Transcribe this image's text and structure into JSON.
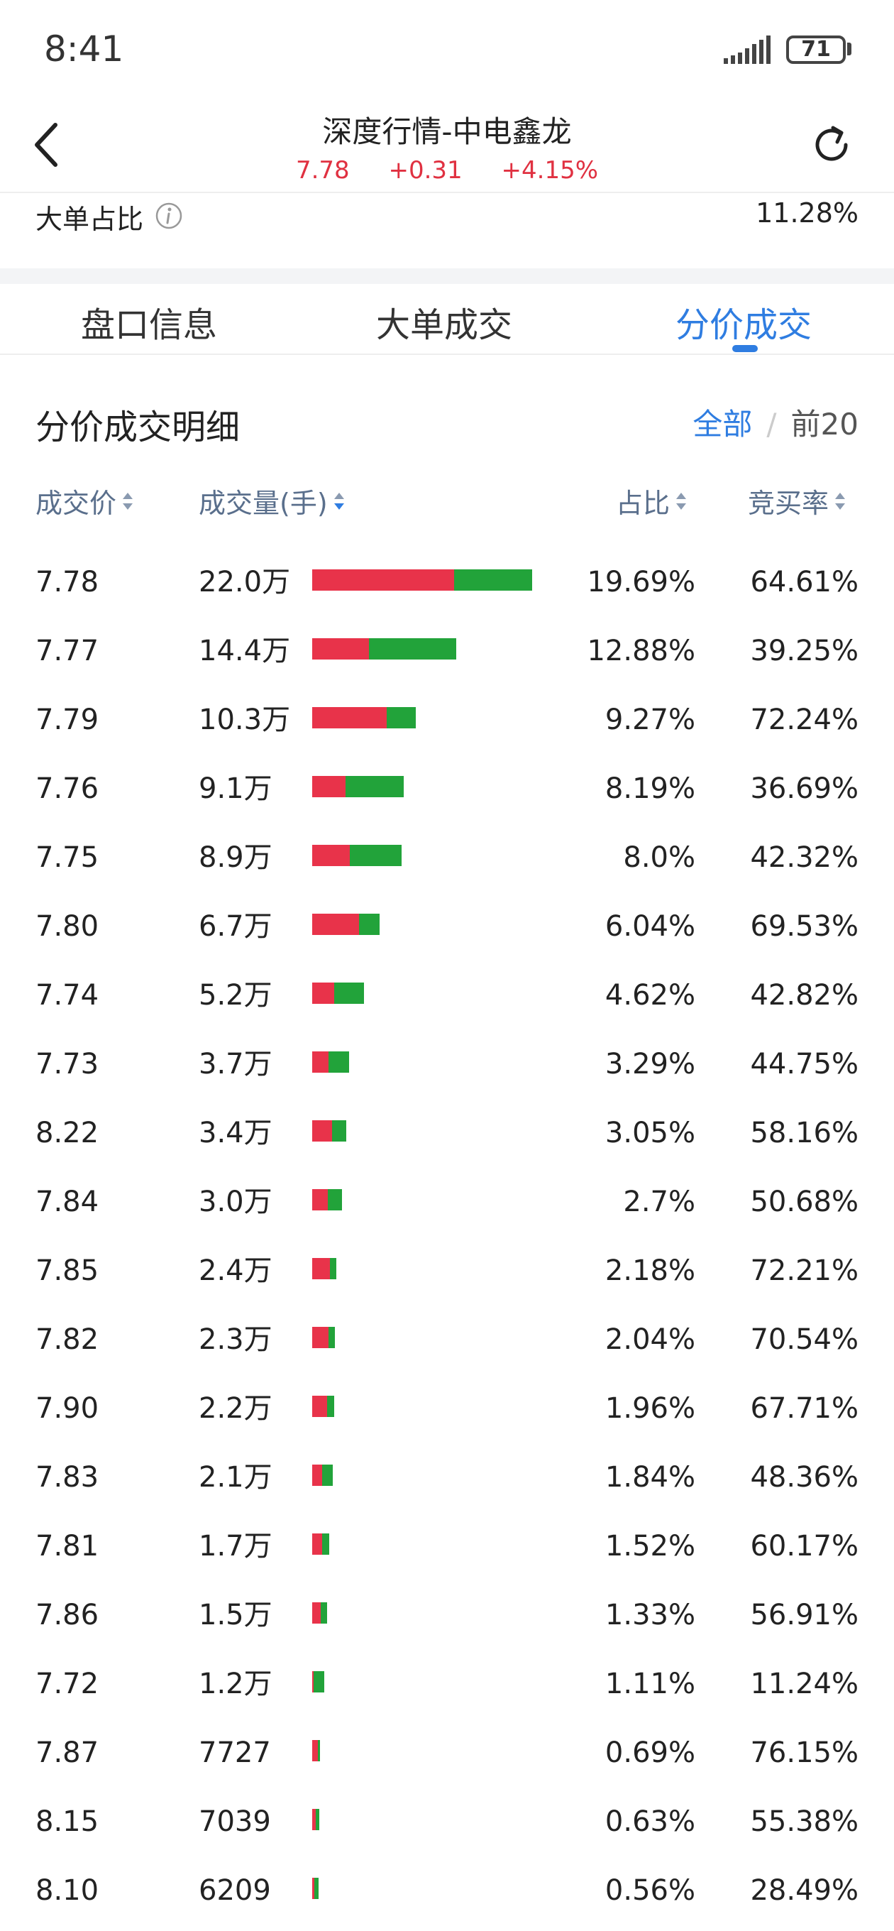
{
  "status_bar": {
    "time": "8:41",
    "battery": "71",
    "icons": [
      "signal-icon",
      "battery-icon"
    ]
  },
  "header": {
    "title": "深度行情-中电鑫龙",
    "price": "7.78",
    "change": "+0.31",
    "change_pct": "+4.15%",
    "price_color": "#e03141",
    "icons": [
      "back-icon",
      "refresh-icon"
    ]
  },
  "big_order": {
    "label": "大单占比",
    "value": "11.28%",
    "icon": "info-icon"
  },
  "tabs": [
    {
      "label": "盘口信息",
      "active": false
    },
    {
      "label": "大单成交",
      "active": false
    },
    {
      "label": "分价成交",
      "active": true
    }
  ],
  "section": {
    "title": "分价成交明细",
    "filter_all": "全部",
    "filter_sep": "/",
    "filter_top": "前20"
  },
  "columns": {
    "price": "成交价",
    "volume": "成交量(手)",
    "ratio": "占比",
    "bid_rate": "竞买率"
  },
  "colors": {
    "accent": "#2f7de1",
    "buy": "#e8334a",
    "sell": "#22a33a"
  },
  "rows": [
    {
      "price": "7.78",
      "volume": "22.0万",
      "ratio": "19.69%",
      "bid_rate": "64.61%",
      "share": 0.1969,
      "buy_rate": 0.6461
    },
    {
      "price": "7.77",
      "volume": "14.4万",
      "ratio": "12.88%",
      "bid_rate": "39.25%",
      "share": 0.1288,
      "buy_rate": 0.3925
    },
    {
      "price": "7.79",
      "volume": "10.3万",
      "ratio": "9.27%",
      "bid_rate": "72.24%",
      "share": 0.0927,
      "buy_rate": 0.7224
    },
    {
      "price": "7.76",
      "volume": "9.1万",
      "ratio": "8.19%",
      "bid_rate": "36.69%",
      "share": 0.0819,
      "buy_rate": 0.3669
    },
    {
      "price": "7.75",
      "volume": "8.9万",
      "ratio": "8.0%",
      "bid_rate": "42.32%",
      "share": 0.08,
      "buy_rate": 0.4232
    },
    {
      "price": "7.80",
      "volume": "6.7万",
      "ratio": "6.04%",
      "bid_rate": "69.53%",
      "share": 0.0604,
      "buy_rate": 0.6953
    },
    {
      "price": "7.74",
      "volume": "5.2万",
      "ratio": "4.62%",
      "bid_rate": "42.82%",
      "share": 0.0462,
      "buy_rate": 0.4282
    },
    {
      "price": "7.73",
      "volume": "3.7万",
      "ratio": "3.29%",
      "bid_rate": "44.75%",
      "share": 0.0329,
      "buy_rate": 0.4475
    },
    {
      "price": "8.22",
      "volume": "3.4万",
      "ratio": "3.05%",
      "bid_rate": "58.16%",
      "share": 0.0305,
      "buy_rate": 0.5816
    },
    {
      "price": "7.84",
      "volume": "3.0万",
      "ratio": "2.7%",
      "bid_rate": "50.68%",
      "share": 0.027,
      "buy_rate": 0.5068
    },
    {
      "price": "7.85",
      "volume": "2.4万",
      "ratio": "2.18%",
      "bid_rate": "72.21%",
      "share": 0.0218,
      "buy_rate": 0.7221
    },
    {
      "price": "7.82",
      "volume": "2.3万",
      "ratio": "2.04%",
      "bid_rate": "70.54%",
      "share": 0.0204,
      "buy_rate": 0.7054
    },
    {
      "price": "7.90",
      "volume": "2.2万",
      "ratio": "1.96%",
      "bid_rate": "67.71%",
      "share": 0.0196,
      "buy_rate": 0.6771
    },
    {
      "price": "7.83",
      "volume": "2.1万",
      "ratio": "1.84%",
      "bid_rate": "48.36%",
      "share": 0.0184,
      "buy_rate": 0.4836
    },
    {
      "price": "7.81",
      "volume": "1.7万",
      "ratio": "1.52%",
      "bid_rate": "60.17%",
      "share": 0.0152,
      "buy_rate": 0.6017
    },
    {
      "price": "7.86",
      "volume": "1.5万",
      "ratio": "1.33%",
      "bid_rate": "56.91%",
      "share": 0.0133,
      "buy_rate": 0.5691
    },
    {
      "price": "7.72",
      "volume": "1.2万",
      "ratio": "1.11%",
      "bid_rate": "11.24%",
      "share": 0.0111,
      "buy_rate": 0.1124
    },
    {
      "price": "7.87",
      "volume": "7727",
      "ratio": "0.69%",
      "bid_rate": "76.15%",
      "share": 0.0069,
      "buy_rate": 0.7615
    },
    {
      "price": "8.15",
      "volume": "7039",
      "ratio": "0.63%",
      "bid_rate": "55.38%",
      "share": 0.0063,
      "buy_rate": 0.5538
    },
    {
      "price": "8.10",
      "volume": "6209",
      "ratio": "0.56%",
      "bid_rate": "28.49%",
      "share": 0.0056,
      "buy_rate": 0.2849
    }
  ]
}
